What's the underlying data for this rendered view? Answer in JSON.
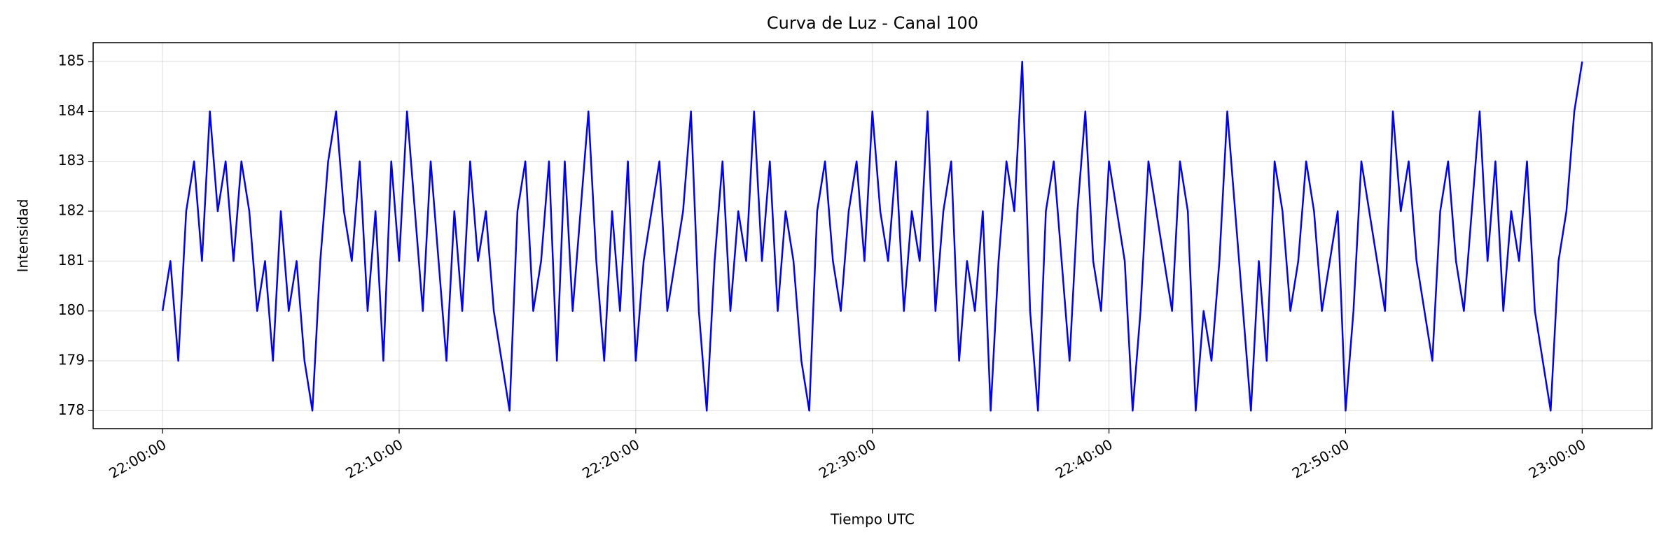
{
  "chart_data": {
    "type": "line",
    "title": "Curva de Luz - Canal 100",
    "x_label": "Tiempo UTC",
    "y_label": "Intensidad",
    "color": "#0000ff",
    "grid": true,
    "xlim": [
      "21:57:04",
      "23:02:57"
    ],
    "xticks": [
      "22:00:00",
      "22:10:00",
      "22:20:00",
      "22:30:00",
      "22:40:00",
      "22:50:00",
      "23:00:00"
    ],
    "ylim": [
      177.64,
      185.38
    ],
    "yticks": [
      178,
      179,
      180,
      181,
      182,
      183,
      184,
      185
    ],
    "x": [
      "22:00:00",
      "22:00:20",
      "22:00:40",
      "22:01:00",
      "22:01:20",
      "22:01:40",
      "22:02:00",
      "22:02:20",
      "22:02:40",
      "22:03:00",
      "22:03:20",
      "22:03:40",
      "22:04:00",
      "22:04:20",
      "22:04:40",
      "22:05:00",
      "22:05:20",
      "22:05:40",
      "22:06:00",
      "22:06:20",
      "22:06:40",
      "22:07:00",
      "22:07:20",
      "22:07:40",
      "22:08:00",
      "22:08:20",
      "22:08:40",
      "22:09:00",
      "22:09:20",
      "22:09:40",
      "22:10:00",
      "22:10:20",
      "22:10:40",
      "22:11:00",
      "22:11:20",
      "22:11:40",
      "22:12:00",
      "22:12:20",
      "22:12:40",
      "22:13:00",
      "22:13:20",
      "22:13:40",
      "22:14:00",
      "22:14:20",
      "22:14:40",
      "22:15:00",
      "22:15:20",
      "22:15:40",
      "22:16:00",
      "22:16:20",
      "22:16:40",
      "22:17:00",
      "22:17:20",
      "22:17:40",
      "22:18:00",
      "22:18:20",
      "22:18:40",
      "22:19:00",
      "22:19:20",
      "22:19:40",
      "22:20:00",
      "22:20:20",
      "22:20:40",
      "22:21:00",
      "22:21:20",
      "22:21:40",
      "22:22:00",
      "22:22:20",
      "22:22:40",
      "22:23:00",
      "22:23:20",
      "22:23:40",
      "22:24:00",
      "22:24:20",
      "22:24:40",
      "22:25:00",
      "22:25:20",
      "22:25:40",
      "22:26:00",
      "22:26:20",
      "22:26:40",
      "22:27:00",
      "22:27:20",
      "22:27:40",
      "22:28:00",
      "22:28:20",
      "22:28:40",
      "22:29:00",
      "22:29:20",
      "22:29:40",
      "22:30:00",
      "22:30:20",
      "22:30:40",
      "22:31:00",
      "22:31:20",
      "22:31:40",
      "22:32:00",
      "22:32:20",
      "22:32:40",
      "22:33:00",
      "22:33:20",
      "22:33:40",
      "22:34:00",
      "22:34:20",
      "22:34:40",
      "22:35:00",
      "22:35:20",
      "22:35:40",
      "22:36:00",
      "22:36:20",
      "22:36:40",
      "22:37:00",
      "22:37:20",
      "22:37:40",
      "22:38:00",
      "22:38:20",
      "22:38:40",
      "22:39:00",
      "22:39:20",
      "22:39:40",
      "22:40:00",
      "22:40:20",
      "22:40:40",
      "22:41:00",
      "22:41:20",
      "22:41:40",
      "22:42:00",
      "22:42:20",
      "22:42:40",
      "22:43:00",
      "22:43:20",
      "22:43:40",
      "22:44:00",
      "22:44:20",
      "22:44:40",
      "22:45:00",
      "22:45:20",
      "22:45:40",
      "22:46:00",
      "22:46:20",
      "22:46:40",
      "22:47:00",
      "22:47:20",
      "22:47:40",
      "22:48:00",
      "22:48:20",
      "22:48:40",
      "22:49:00",
      "22:49:20",
      "22:49:40",
      "22:50:00",
      "22:50:20",
      "22:50:40",
      "22:51:00",
      "22:51:20",
      "22:51:40",
      "22:52:00",
      "22:52:20",
      "22:52:40",
      "22:53:00",
      "22:53:20",
      "22:53:40",
      "22:54:00",
      "22:54:20",
      "22:54:40",
      "22:55:00",
      "22:55:20",
      "22:55:40",
      "22:56:00",
      "22:56:20",
      "22:56:40",
      "22:57:00",
      "22:57:20",
      "22:57:40",
      "22:58:00",
      "22:58:20",
      "22:58:40",
      "22:59:00",
      "22:59:20",
      "22:59:40",
      "23:00:00"
    ],
    "values": [
      180,
      181,
      179,
      182,
      183,
      181,
      184,
      182,
      183,
      181,
      183,
      182,
      180,
      181,
      179,
      182,
      180,
      181,
      179,
      178,
      181,
      183,
      184,
      182,
      181,
      183,
      180,
      182,
      179,
      183,
      181,
      184,
      182,
      180,
      183,
      181,
      179,
      182,
      180,
      183,
      181,
      182,
      180,
      179,
      178,
      182,
      183,
      180,
      181,
      183,
      179,
      183,
      180,
      182,
      184,
      181,
      179,
      182,
      180,
      183,
      179,
      181,
      182,
      183,
      180,
      181,
      182,
      184,
      180,
      178,
      181,
      183,
      180,
      182,
      181,
      184,
      181,
      183,
      180,
      182,
      181,
      179,
      178,
      182,
      183,
      181,
      180,
      182,
      183,
      181,
      184,
      182,
      181,
      183,
      180,
      182,
      181,
      184,
      180,
      182,
      183,
      179,
      181,
      180,
      182,
      178,
      181,
      183,
      182,
      185,
      180,
      178,
      182,
      183,
      181,
      179,
      182,
      184,
      181,
      180,
      183,
      182,
      181,
      178,
      180,
      183,
      182,
      181,
      180,
      183,
      182,
      178,
      180,
      179,
      181,
      184,
      182,
      180,
      178,
      181,
      179,
      183,
      182,
      180,
      181,
      183,
      182,
      180,
      181,
      182,
      178,
      180,
      183,
      182,
      181,
      180,
      184,
      182,
      183,
      181,
      180,
      179,
      182,
      183,
      181,
      180,
      182,
      184,
      181,
      183,
      180,
      182,
      181,
      183,
      180,
      179,
      178,
      181,
      182,
      184,
      185
    ]
  }
}
